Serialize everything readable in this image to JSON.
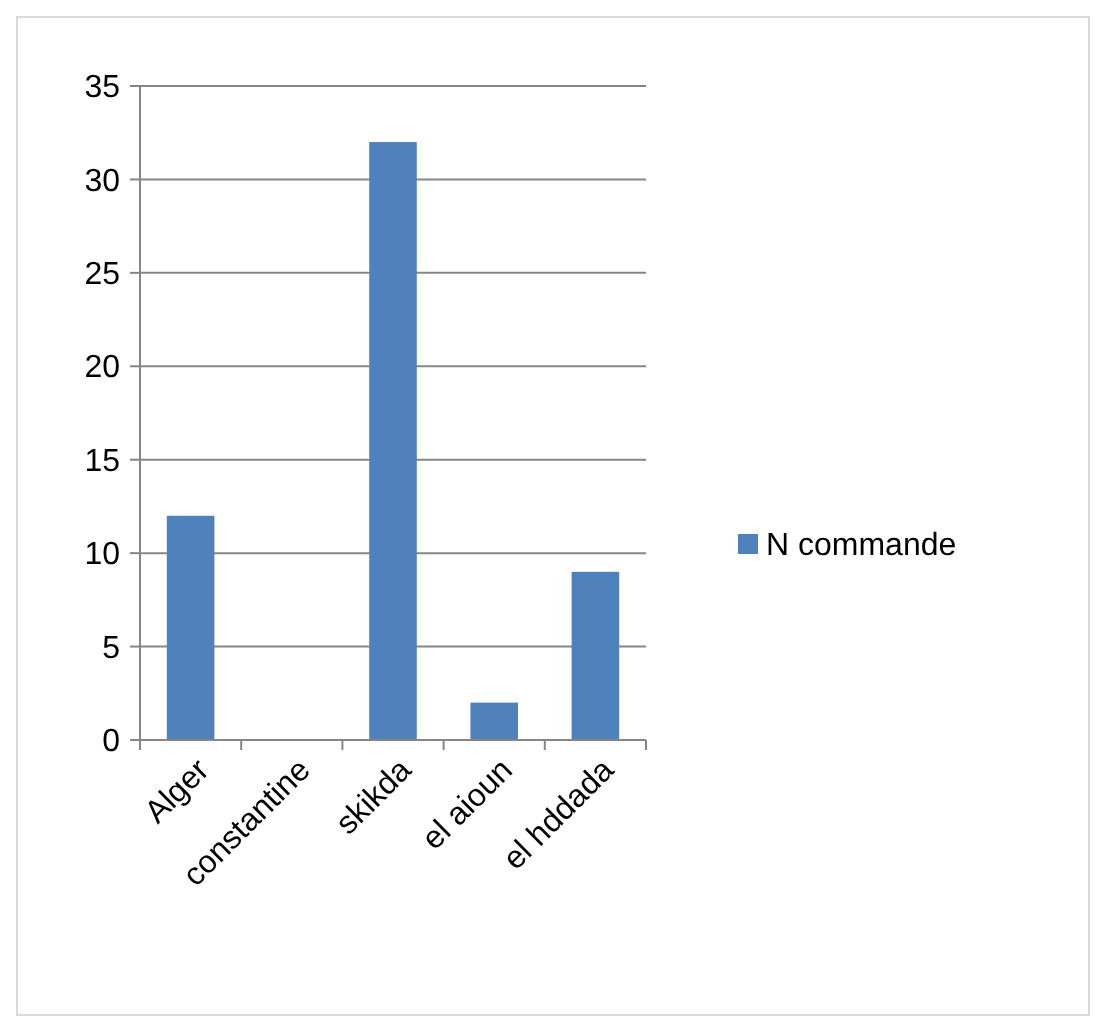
{
  "chart_data": {
    "type": "bar",
    "categories": [
      "Alger",
      "constantine",
      "skikda",
      "el aioun",
      "el hddada"
    ],
    "series": [
      {
        "name": "N commande",
        "color": "#4f81bd",
        "values": [
          12,
          0,
          32,
          2,
          9
        ]
      }
    ],
    "ylim": [
      0,
      35
    ],
    "yticks": [
      0,
      5,
      10,
      15,
      20,
      25,
      30,
      35
    ],
    "grid": "y",
    "legend": "right"
  }
}
